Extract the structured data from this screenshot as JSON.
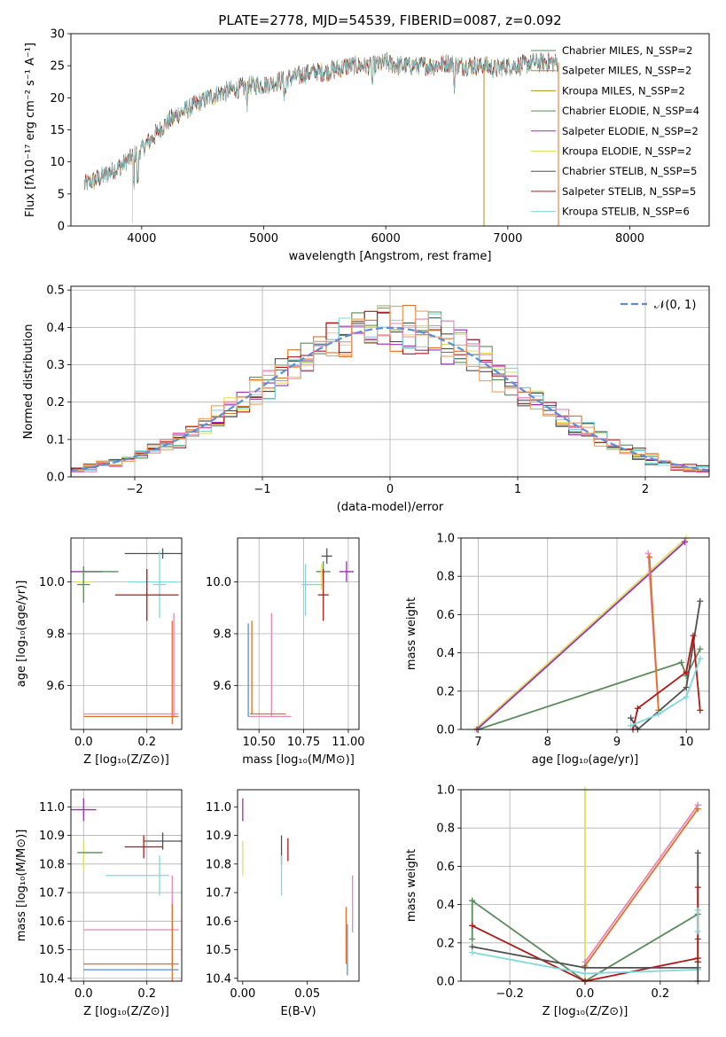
{
  "chart_data": [
    {
      "id": "spectrum",
      "type": "line",
      "title": "PLATE=2778, MJD=54539, FIBERID=0087, z=0.092",
      "xlabel": "wavelength [Angstrom, rest frame]",
      "ylabel": "Flux [fλ10⁻¹⁷ erg cm⁻² s⁻¹ A⁻¹]",
      "xlim": [
        3420,
        8650
      ],
      "ylim": [
        0,
        30
      ],
      "xticks": [
        4000,
        5000,
        6000,
        7000,
        8000
      ],
      "yticks": [
        0,
        5,
        10,
        15,
        20,
        25,
        30
      ],
      "grid": false,
      "legend_position": "top-right",
      "continuum": {
        "x": [
          3530,
          3600,
          3700,
          3800,
          3900,
          4000,
          4100,
          4200,
          4300,
          4400,
          4500,
          4600,
          4700,
          4800,
          4900,
          5000,
          5100,
          5200,
          5300,
          5400,
          5500,
          5600,
          5700,
          5800,
          5900,
          6000,
          6100,
          6200,
          6300,
          6400,
          6500,
          6600,
          6700,
          6800,
          6900,
          7000,
          7100,
          7200,
          7300,
          7400
        ],
        "y": [
          6.5,
          7,
          8,
          9,
          10.5,
          12,
          14,
          16,
          17.5,
          18.5,
          19.5,
          20.5,
          21,
          21.5,
          22,
          22,
          22.5,
          23,
          23.5,
          24,
          24,
          24.5,
          25,
          25,
          25,
          25.5,
          25,
          25,
          25,
          25,
          25.5,
          25,
          25,
          25,
          24.5,
          25,
          25,
          25.5,
          25.5,
          25.5
        ]
      },
      "series": [
        {
          "name": "Chabrier MILES, N_SSP=2",
          "color": "#5b8a5b"
        },
        {
          "name": "Salpeter MILES, N_SSP=2",
          "color": "#e07028"
        },
        {
          "name": "Kroupa MILES, N_SSP=2",
          "color": "#b08d1a"
        },
        {
          "name": "Chabrier ELODIE, N_SSP=4",
          "color": "#4f8f4f"
        },
        {
          "name": "Salpeter ELODIE, N_SSP=2",
          "color": "#9b30b0"
        },
        {
          "name": "Kroupa ELODIE, N_SSP=2",
          "color": "#dde060"
        },
        {
          "name": "Chabrier STELIB, N_SSP=5",
          "color": "#505050"
        },
        {
          "name": "Salpeter STELIB, N_SSP=5",
          "color": "#b01818"
        },
        {
          "name": "Kroupa STELIB, N_SSP=6",
          "color": "#80d8dc"
        }
      ]
    },
    {
      "id": "residuals",
      "type": "histogram",
      "xlabel": "(data-model)/error",
      "ylabel": "Normed distribution",
      "xlim": [
        -2.5,
        2.5
      ],
      "ylim": [
        0,
        0.51
      ],
      "xticks": [
        -2,
        -1,
        0,
        1,
        2
      ],
      "yticks": [
        0.0,
        0.1,
        0.2,
        0.3,
        0.4,
        0.5
      ],
      "grid": true,
      "legend_position": "top-right",
      "reference": {
        "name": "𝒩(0, 1)",
        "color": "#5a8ed6",
        "style": "dashed",
        "mean": 0,
        "sigma": 1
      },
      "bin_width": 0.1,
      "series_colors": [
        "#5b8a5b",
        "#e07028",
        "#9b30b0",
        "#dde060",
        "#505050",
        "#b01818",
        "#80d8dc",
        "#e884b8",
        "#f0a060"
      ]
    },
    {
      "id": "age-vs-Z",
      "type": "errorbar",
      "xlabel": "Z [log₁₀(Z/Z⊙)]",
      "ylabel": "age  [log₁₀(age/yr)]",
      "xlim": [
        -0.04,
        0.31
      ],
      "ylim": [
        9.43,
        10.17
      ],
      "xticks": [
        0.0,
        0.2
      ],
      "yticks": [
        9.6,
        9.8,
        10.0
      ],
      "grid": true,
      "points": [
        {
          "x": 0.0,
          "y": 10.04,
          "xerr": 0.06,
          "yerr": 0.0,
          "color": "#9b30b0"
        },
        {
          "x": 0.0,
          "y": 10.0,
          "xerr": 0.025,
          "yerr": 0.05,
          "color": "#dde060"
        },
        {
          "x": 0.05,
          "y": 10.04,
          "xerr": 0.06,
          "yerr": 0.0,
          "color": "#5b8a5b"
        },
        {
          "x": 0.0,
          "y": 9.99,
          "xerr": 0.02,
          "yerr": 0.07,
          "color": "#5b8a5b"
        },
        {
          "x": 0.25,
          "y": 10.11,
          "xerr": 0.12,
          "yerr": 0.02,
          "color": "#505050"
        },
        {
          "x": 0.22,
          "y": 10.0,
          "xerr": 0.08,
          "yerr": 0.0,
          "color": "#80d8dc"
        },
        {
          "x": 0.24,
          "y": 9.99,
          "xerr": 0.02,
          "yerr": 0.13,
          "color": "#80d8dc"
        },
        {
          "x": 0.2,
          "y": 9.95,
          "xerr": 0.1,
          "yerr": 0.1,
          "color": "#b01818"
        },
        {
          "x": 0.285,
          "y": 9.68,
          "xerr": 0.0,
          "yerr": 0.2,
          "color": "#e884b8"
        },
        {
          "x": 0.28,
          "y": 9.65,
          "xerr": 0.0,
          "yerr": 0.2,
          "color": "#e07028"
        },
        {
          "x": 0.15,
          "y": 9.49,
          "xerr": 0.15,
          "yerr": 0.0,
          "color": "#e884b8"
        },
        {
          "x": 0.15,
          "y": 9.48,
          "xerr": 0.15,
          "yerr": 0.0,
          "color": "#e07028"
        }
      ]
    },
    {
      "id": "age-vs-mass",
      "type": "errorbar",
      "xlabel": "mass [log₁₀(M/M⊙)]",
      "ylabel": "",
      "xlim": [
        10.38,
        11.06
      ],
      "ylim": [
        9.43,
        10.17
      ],
      "xticks": [
        10.5,
        10.75,
        11.0
      ],
      "yticks": [
        9.6,
        9.8,
        10.0
      ],
      "grid": true,
      "points": [
        {
          "x": 10.99,
          "y": 10.04,
          "xerr": 0.04,
          "yerr": 0.04,
          "color": "#9b30b0"
        },
        {
          "x": 10.88,
          "y": 10.1,
          "xerr": 0.03,
          "yerr": 0.03,
          "color": "#505050"
        },
        {
          "x": 10.86,
          "y": 10.04,
          "xerr": 0.04,
          "yerr": 0.04,
          "color": "#5b8a5b"
        },
        {
          "x": 10.85,
          "y": 10.02,
          "xerr": 0.0,
          "yerr": 0.05,
          "color": "#dde060"
        },
        {
          "x": 10.8,
          "y": 9.99,
          "xerr": 0.06,
          "yerr": 0.0,
          "color": "#80d8dc"
        },
        {
          "x": 10.76,
          "y": 9.97,
          "xerr": 0.0,
          "yerr": 0.1,
          "color": "#80d8dc"
        },
        {
          "x": 10.86,
          "y": 9.95,
          "xerr": 0.03,
          "yerr": 0.1,
          "color": "#b01818"
        },
        {
          "x": 10.57,
          "y": 9.68,
          "xerr": 0.0,
          "yerr": 0.2,
          "color": "#e884b8"
        },
        {
          "x": 10.56,
          "y": 9.48,
          "xerr": 0.12,
          "yerr": 0.0,
          "color": "#e884b8"
        },
        {
          "x": 10.46,
          "y": 9.67,
          "xerr": 0.0,
          "yerr": 0.18,
          "color": "#e07028"
        },
        {
          "x": 10.44,
          "y": 9.66,
          "xerr": 0.0,
          "yerr": 0.18,
          "color": "#5a8ed6"
        },
        {
          "x": 10.55,
          "y": 9.49,
          "xerr": 0.1,
          "yerr": 0.0,
          "color": "#e07028"
        }
      ]
    },
    {
      "id": "weight-vs-age",
      "type": "line",
      "xlabel": "age  [log₁₀(age/yr)]",
      "ylabel": "mass weight",
      "xlim": [
        6.75,
        10.33
      ],
      "ylim": [
        0,
        1.0
      ],
      "xticks": [
        7,
        8,
        9,
        10
      ],
      "yticks": [
        0.0,
        0.2,
        0.4,
        0.6,
        0.8,
        1.0
      ],
      "grid": true,
      "series": [
        {
          "color": "#dde060",
          "x": [
            6.95,
            10.0
          ],
          "y": [
            0.0,
            1.0
          ]
        },
        {
          "color": "#9b30b0",
          "x": [
            6.98,
            9.98
          ],
          "y": [
            0.0,
            0.98
          ]
        },
        {
          "color": "#5b8a5b",
          "x": [
            7.0,
            9.93,
            10.0,
            10.2
          ],
          "y": [
            0.0,
            0.35,
            0.28,
            0.42
          ]
        },
        {
          "color": "#e884b8",
          "x": [
            9.45,
            9.6
          ],
          "y": [
            0.92,
            0.1
          ]
        },
        {
          "color": "#e07028",
          "x": [
            9.47,
            9.6
          ],
          "y": [
            0.9,
            0.1
          ]
        },
        {
          "color": "#505050",
          "x": [
            9.2,
            9.3,
            10.0,
            10.2
          ],
          "y": [
            0.06,
            0.0,
            0.22,
            0.67
          ]
        },
        {
          "color": "#b01818",
          "x": [
            9.23,
            9.3,
            10.0,
            10.1,
            10.2
          ],
          "y": [
            0.0,
            0.11,
            0.3,
            0.49,
            0.1
          ]
        },
        {
          "color": "#80d8dc",
          "x": [
            9.2,
            9.6,
            10.0,
            10.2
          ],
          "y": [
            0.02,
            0.08,
            0.17,
            0.37
          ]
        }
      ]
    },
    {
      "id": "mass-vs-Z",
      "type": "errorbar",
      "xlabel": "Z [log₁₀(Z/Z⊙)]",
      "ylabel": "mass [log₁₀(M/M⊙)]",
      "xlim": [
        -0.04,
        0.31
      ],
      "ylim": [
        10.39,
        11.06
      ],
      "xticks": [
        0.0,
        0.2
      ],
      "yticks": [
        10.4,
        10.5,
        10.6,
        10.7,
        10.8,
        10.9,
        11.0
      ],
      "grid": true,
      "points": [
        {
          "x": 0.0,
          "y": 10.99,
          "xerr": 0.04,
          "yerr": 0.04,
          "color": "#9b30b0"
        },
        {
          "x": 0.0,
          "y": 10.83,
          "xerr": 0.0,
          "yerr": 0.05,
          "color": "#dde060"
        },
        {
          "x": 0.02,
          "y": 10.84,
          "xerr": 0.04,
          "yerr": 0.0,
          "color": "#5b8a5b"
        },
        {
          "x": 0.25,
          "y": 10.88,
          "xerr": 0.06,
          "yerr": 0.03,
          "color": "#505050"
        },
        {
          "x": 0.19,
          "y": 10.86,
          "xerr": 0.06,
          "yerr": 0.04,
          "color": "#b01818"
        },
        {
          "x": 0.17,
          "y": 10.76,
          "xerr": 0.1,
          "yerr": 0.0,
          "color": "#80d8dc"
        },
        {
          "x": 0.24,
          "y": 10.76,
          "xerr": 0.0,
          "yerr": 0.07,
          "color": "#80d8dc"
        },
        {
          "x": 0.15,
          "y": 10.57,
          "xerr": 0.15,
          "yerr": 0.0,
          "color": "#e884b8"
        },
        {
          "x": 0.28,
          "y": 10.6,
          "xerr": 0.0,
          "yerr": 0.16,
          "color": "#e884b8"
        },
        {
          "x": 0.15,
          "y": 10.45,
          "xerr": 0.15,
          "yerr": 0.0,
          "color": "#e07028"
        },
        {
          "x": 0.28,
          "y": 10.5,
          "xerr": 0.0,
          "yerr": 0.16,
          "color": "#e07028"
        },
        {
          "x": 0.15,
          "y": 10.43,
          "xerr": 0.15,
          "yerr": 0.0,
          "color": "#5a8ed6"
        }
      ]
    },
    {
      "id": "mass-vs-EBV",
      "type": "errorbar",
      "xlabel": "E(B-V)",
      "ylabel": "",
      "xlim": [
        -0.004,
        0.09
      ],
      "ylim": [
        10.39,
        11.06
      ],
      "xticks": [
        0.0,
        0.05
      ],
      "yticks": [
        10.4,
        10.5,
        10.6,
        10.7,
        10.8,
        10.9,
        11.0
      ],
      "grid": false,
      "points": [
        {
          "x": 0.0,
          "y": 10.99,
          "xerr": 0.0,
          "yerr": 0.04,
          "color": "#9b30b0"
        },
        {
          "x": 0.0,
          "y": 10.82,
          "xerr": 0.0,
          "yerr": 0.06,
          "color": "#dde060"
        },
        {
          "x": 0.03,
          "y": 10.85,
          "xerr": 0.0,
          "yerr": 0.05,
          "color": "#505050"
        },
        {
          "x": 0.035,
          "y": 10.85,
          "xerr": 0.0,
          "yerr": 0.04,
          "color": "#b01818"
        },
        {
          "x": 0.03,
          "y": 10.76,
          "xerr": 0.0,
          "yerr": 0.07,
          "color": "#80d8dc"
        },
        {
          "x": 0.085,
          "y": 10.66,
          "xerr": 0.0,
          "yerr": 0.1,
          "color": "#e884b8"
        },
        {
          "x": 0.08,
          "y": 10.55,
          "xerr": 0.0,
          "yerr": 0.1,
          "color": "#e07028"
        },
        {
          "x": 0.081,
          "y": 10.5,
          "xerr": 0.0,
          "yerr": 0.09,
          "color": "#5a8ed6"
        }
      ]
    },
    {
      "id": "weight-vs-Z",
      "type": "line",
      "xlabel": "Z [log₁₀(Z/Z⊙)]",
      "ylabel": "mass weight",
      "xlim": [
        -0.33,
        0.33
      ],
      "ylim": [
        0,
        1.0
      ],
      "xticks": [
        -0.2,
        0.0,
        0.2
      ],
      "yticks": [
        0.0,
        0.2,
        0.4,
        0.6,
        0.8,
        1.0
      ],
      "grid": true,
      "series": [
        {
          "color": "#dde060",
          "x": [
            0.0,
            0.0
          ],
          "y": [
            0.0,
            1.0
          ]
        },
        {
          "color": "#e884b8",
          "x": [
            0.0,
            0.3
          ],
          "y": [
            0.1,
            0.92
          ]
        },
        {
          "color": "#e07028",
          "x": [
            0.0,
            0.3
          ],
          "y": [
            0.08,
            0.9
          ]
        },
        {
          "color": "#5b8a5b",
          "x": [
            -0.3,
            0.0,
            0.3
          ],
          "y": [
            0.42,
            0.0,
            0.35
          ]
        },
        {
          "color": "#b01818",
          "x": [
            -0.3,
            0.0,
            0.3
          ],
          "y": [
            0.29,
            0.0,
            0.12
          ]
        },
        {
          "color": "#505050",
          "x": [
            -0.3,
            0.0,
            0.3
          ],
          "y": [
            0.18,
            0.07,
            0.07
          ]
        },
        {
          "color": "#80d8dc",
          "x": [
            -0.3,
            0.0,
            0.3
          ],
          "y": [
            0.15,
            0.04,
            0.06
          ]
        }
      ],
      "markers": [
        {
          "color": "#505050",
          "x": 0.3,
          "y": [
            0.67,
            0.22,
            0.1,
            0.0
          ]
        },
        {
          "color": "#b01818",
          "x": 0.3,
          "y": [
            0.49,
            0.1
          ]
        },
        {
          "color": "#80d8dc",
          "x": 0.3,
          "y": [
            0.37,
            0.26
          ]
        },
        {
          "color": "#5b8a5b",
          "x": -0.3,
          "y": [
            0.42,
            0.22
          ]
        },
        {
          "color": "#b01818",
          "x": -0.3,
          "y": [
            0.29
          ]
        },
        {
          "color": "#e884b8",
          "x": 0.3,
          "y": [
            0.92
          ]
        }
      ]
    }
  ]
}
